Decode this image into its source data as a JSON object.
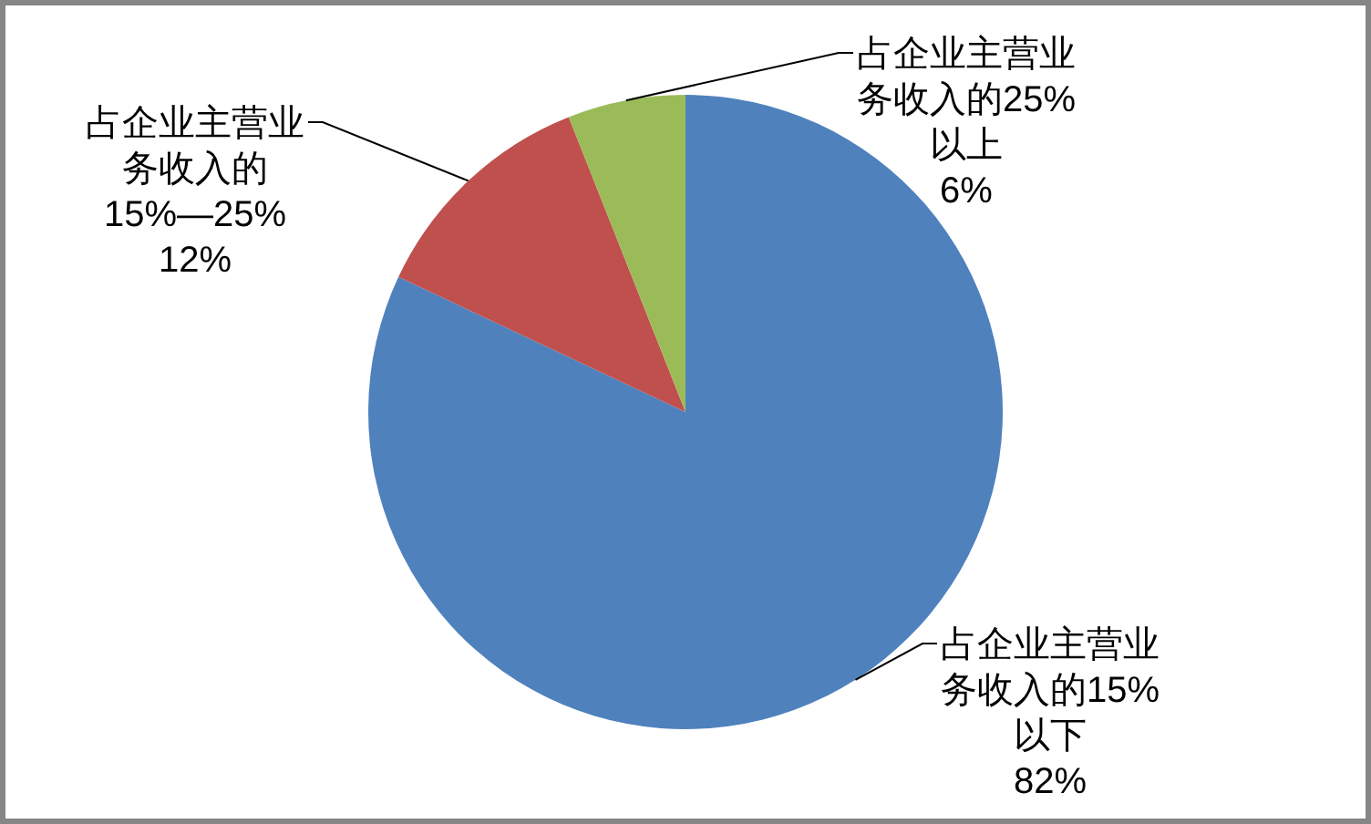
{
  "chart_data": {
    "type": "pie",
    "categories": [
      "占企业主营业务收入的15%以下",
      "占企业主营业务收入的15%—25%",
      "占企业主营业务收入的25%以上"
    ],
    "values": [
      82,
      12,
      6
    ],
    "colors": [
      "#4f81bd",
      "#c0504d",
      "#9bbb59"
    ],
    "value_labels": [
      "82%",
      "12%",
      "6%"
    ]
  }
}
